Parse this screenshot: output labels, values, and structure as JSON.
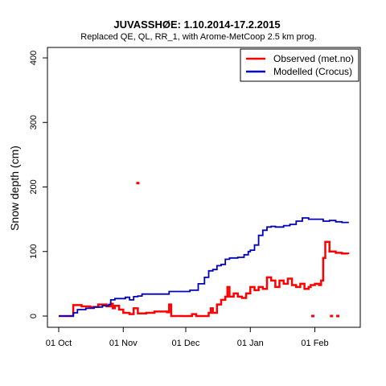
{
  "chart_data": {
    "type": "line",
    "title": "JUVASSHØE: 1.10.2014-17.2.2015",
    "subtitle": "Replaced QE, QL, RR_1,  with Arome-MetCoop 2.5 km prog.",
    "xlabel": "",
    "ylabel": "Snow depth (cm)",
    "xlim": [
      "2014-10-01",
      "2015-02-17"
    ],
    "ylim": [
      0,
      400
    ],
    "x_ticks": [
      {
        "date": "2014-10-01",
        "label": "01 Oct"
      },
      {
        "date": "2014-11-01",
        "label": "01 Nov"
      },
      {
        "date": "2014-12-01",
        "label": "01 Dec"
      },
      {
        "date": "2015-01-01",
        "label": "01 Jan"
      },
      {
        "date": "2015-02-01",
        "label": "01 Feb"
      }
    ],
    "y_ticks": [
      0,
      100,
      200,
      300,
      400
    ],
    "grid": false,
    "legend": "top-right",
    "series": [
      {
        "name": "Observed (met.no)",
        "color": "#ff0000",
        "style": "step",
        "points": [
          [
            "2014-10-01",
            0
          ],
          [
            "2014-10-08",
            0
          ],
          [
            "2014-10-08",
            17
          ],
          [
            "2014-10-12",
            15
          ],
          [
            "2014-10-16",
            14
          ],
          [
            "2014-10-20",
            18
          ],
          [
            "2014-10-24",
            15
          ],
          [
            "2014-10-26",
            19
          ],
          [
            "2014-10-27",
            12
          ],
          [
            "2014-10-28",
            16
          ],
          [
            "2014-10-30",
            10
          ],
          [
            "2014-11-01",
            5
          ],
          [
            "2014-11-04",
            3
          ],
          [
            "2014-11-06",
            12
          ],
          [
            "2014-11-08",
            4
          ],
          [
            "2014-11-12",
            5
          ],
          [
            "2014-11-16",
            7
          ],
          [
            "2014-11-20",
            7
          ],
          [
            "2014-11-22",
            6
          ],
          [
            "2014-11-23",
            18
          ],
          [
            "2014-11-24",
            0
          ],
          [
            "2014-12-02",
            0
          ],
          [
            "2014-12-04",
            3
          ],
          [
            "2014-12-06",
            0
          ],
          [
            "2014-12-10",
            0
          ],
          [
            "2014-12-12",
            5
          ],
          [
            "2014-12-13",
            12
          ],
          [
            "2014-12-14",
            5
          ],
          [
            "2014-12-16",
            18
          ],
          [
            "2014-12-18",
            25
          ],
          [
            "2014-12-20",
            30
          ],
          [
            "2014-12-21",
            45
          ],
          [
            "2014-12-22",
            30
          ],
          [
            "2014-12-24",
            35
          ],
          [
            "2014-12-26",
            30
          ],
          [
            "2014-12-28",
            28
          ],
          [
            "2014-12-30",
            35
          ],
          [
            "2015-01-01",
            45
          ],
          [
            "2015-01-03",
            40
          ],
          [
            "2015-01-05",
            45
          ],
          [
            "2015-01-07",
            42
          ],
          [
            "2015-01-09",
            60
          ],
          [
            "2015-01-11",
            55
          ],
          [
            "2015-01-13",
            45
          ],
          [
            "2015-01-15",
            55
          ],
          [
            "2015-01-17",
            50
          ],
          [
            "2015-01-19",
            58
          ],
          [
            "2015-01-21",
            48
          ],
          [
            "2015-01-23",
            45
          ],
          [
            "2015-01-25",
            50
          ],
          [
            "2015-01-27",
            42
          ],
          [
            "2015-01-29",
            45
          ],
          [
            "2015-01-30",
            48
          ],
          [
            "2015-02-01",
            50
          ],
          [
            "2015-02-03",
            48
          ],
          [
            "2015-02-04",
            55
          ],
          [
            "2015-02-05",
            90
          ],
          [
            "2015-02-06",
            115
          ],
          [
            "2015-02-08",
            100
          ],
          [
            "2015-02-11",
            98
          ],
          [
            "2015-02-14",
            97
          ],
          [
            "2015-02-17",
            96
          ]
        ],
        "outliers": [
          [
            "2014-11-08",
            206
          ],
          [
            "2015-01-31",
            0
          ],
          [
            "2015-02-09",
            0
          ],
          [
            "2015-02-12",
            0
          ]
        ]
      },
      {
        "name": "Modelled (Crocus)",
        "color": "#0000bb",
        "style": "step",
        "points": [
          [
            "2014-10-01",
            0
          ],
          [
            "2014-10-07",
            0
          ],
          [
            "2014-10-08",
            5
          ],
          [
            "2014-10-10",
            10
          ],
          [
            "2014-10-14",
            12
          ],
          [
            "2014-10-18",
            14
          ],
          [
            "2014-10-22",
            16
          ],
          [
            "2014-10-25",
            18
          ],
          [
            "2014-10-26",
            25
          ],
          [
            "2014-10-28",
            27
          ],
          [
            "2014-10-31",
            27
          ],
          [
            "2014-11-02",
            29
          ],
          [
            "2014-11-04",
            25
          ],
          [
            "2014-11-06",
            30
          ],
          [
            "2014-11-08",
            31
          ],
          [
            "2014-11-10",
            34
          ],
          [
            "2014-11-14",
            34
          ],
          [
            "2014-11-18",
            34
          ],
          [
            "2014-11-22",
            34
          ],
          [
            "2014-11-23",
            38
          ],
          [
            "2014-11-26",
            38
          ],
          [
            "2014-11-30",
            38
          ],
          [
            "2014-12-03",
            40
          ],
          [
            "2014-12-05",
            40
          ],
          [
            "2014-12-07",
            50
          ],
          [
            "2014-12-09",
            50
          ],
          [
            "2014-12-10",
            60
          ],
          [
            "2014-12-12",
            70
          ],
          [
            "2014-12-14",
            72
          ],
          [
            "2014-12-16",
            78
          ],
          [
            "2014-12-18",
            80
          ],
          [
            "2014-12-20",
            88
          ],
          [
            "2014-12-22",
            90
          ],
          [
            "2014-12-26",
            91
          ],
          [
            "2014-12-29",
            95
          ],
          [
            "2014-12-31",
            100
          ],
          [
            "2015-01-01",
            102
          ],
          [
            "2015-01-03",
            110
          ],
          [
            "2015-01-05",
            125
          ],
          [
            "2015-01-07",
            133
          ],
          [
            "2015-01-09",
            138
          ],
          [
            "2015-01-11",
            139
          ],
          [
            "2015-01-13",
            138
          ],
          [
            "2015-01-17",
            140
          ],
          [
            "2015-01-20",
            142
          ],
          [
            "2015-01-23",
            147
          ],
          [
            "2015-01-26",
            152
          ],
          [
            "2015-01-29",
            150
          ],
          [
            "2015-02-02",
            150
          ],
          [
            "2015-02-05",
            147
          ],
          [
            "2015-02-08",
            148
          ],
          [
            "2015-02-11",
            146
          ],
          [
            "2015-02-14",
            145
          ],
          [
            "2015-02-17",
            144
          ]
        ]
      }
    ]
  }
}
